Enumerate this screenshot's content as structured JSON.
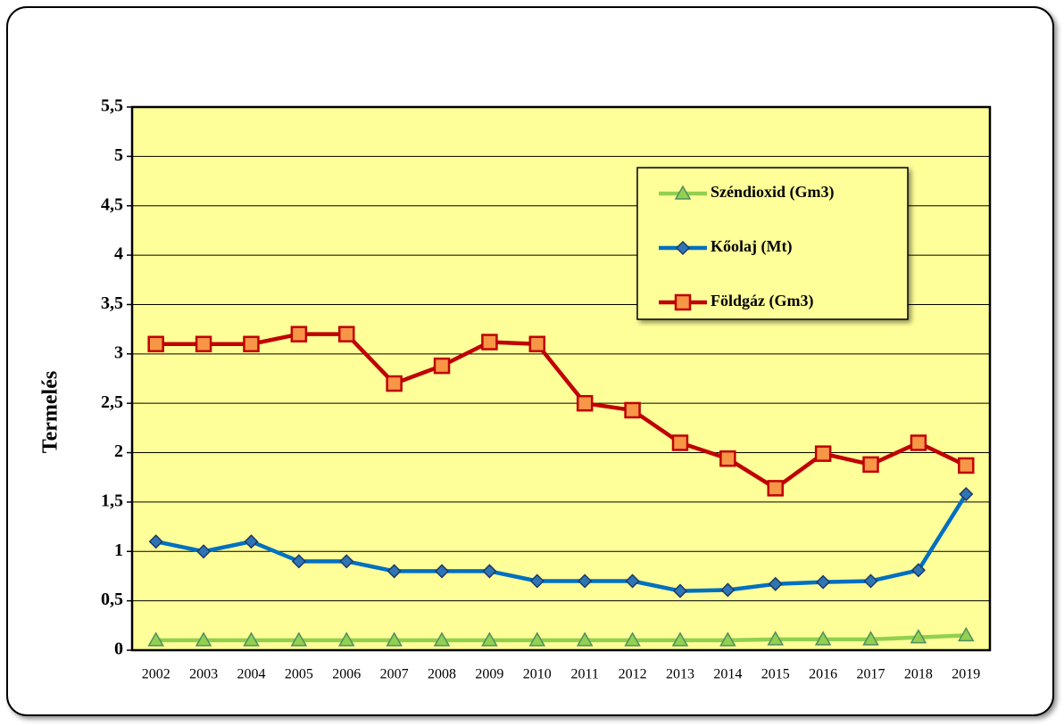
{
  "chart_data": {
    "type": "line",
    "y_label": "Termelés",
    "categories": [
      "2002",
      "2003",
      "2004",
      "2005",
      "2006",
      "2007",
      "2008",
      "2009",
      "2010",
      "2011",
      "2012",
      "2013",
      "2014",
      "2015",
      "2016",
      "2017",
      "2018",
      "2019"
    ],
    "series": [
      {
        "name": "Széndioxid (Gm3)",
        "color": "#92d050",
        "marker": "triangle",
        "values": [
          0.1,
          0.1,
          0.1,
          0.1,
          0.1,
          0.1,
          0.1,
          0.1,
          0.1,
          0.1,
          0.1,
          0.1,
          0.1,
          0.11,
          0.11,
          0.11,
          0.13,
          0.15
        ]
      },
      {
        "name": "Kőolaj (Mt)",
        "color": "#0070c0",
        "marker": "diamond",
        "values": [
          1.1,
          1.0,
          1.1,
          0.9,
          0.9,
          0.8,
          0.8,
          0.8,
          0.7,
          0.7,
          0.7,
          0.6,
          0.61,
          0.67,
          0.69,
          0.7,
          0.81,
          1.58
        ]
      },
      {
        "name": "Földgáz (Gm3)",
        "color": "#c00000",
        "marker": "square",
        "values": [
          3.1,
          3.1,
          3.1,
          3.2,
          3.2,
          2.7,
          2.88,
          3.12,
          3.1,
          2.5,
          2.43,
          2.1,
          1.94,
          1.64,
          1.99,
          1.88,
          2.1,
          1.87
        ]
      }
    ],
    "ylim": [
      0,
      5.5
    ],
    "yticks": [
      0,
      {
        "value": 0.5,
        "label": "0,5"
      },
      1,
      {
        "value": 1.5,
        "label": "1,5"
      },
      2,
      {
        "value": 2.5,
        "label": "2,5"
      },
      3,
      {
        "value": 3.5,
        "label": "3,5"
      },
      4,
      {
        "value": 4.5,
        "label": "4,5"
      },
      5,
      {
        "value": 5.5,
        "label": "5,5"
      }
    ],
    "grid": true
  }
}
